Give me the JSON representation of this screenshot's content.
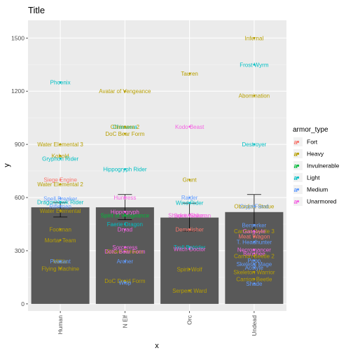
{
  "chart_data": {
    "type": "bar",
    "title": "Title",
    "xlabel": "x",
    "ylabel": "y",
    "ylim": [
      -40,
      1600
    ],
    "y_ticks": [
      0,
      300,
      600,
      900,
      1200,
      1500
    ],
    "categories": [
      "Human",
      "N Elf",
      "Orc",
      "Undead"
    ],
    "values": [
      545,
      545,
      487,
      518
    ],
    "error_bars": [
      {
        "category": "Human",
        "low": 490,
        "high": 572
      },
      {
        "category": "N Elf",
        "low": 475,
        "high": 617
      },
      {
        "category": "Orc",
        "low": 410,
        "high": 568
      },
      {
        "category": "Undead",
        "low": 415,
        "high": 617
      }
    ],
    "grid": true,
    "legend": {
      "title": "armor_type",
      "position": "right",
      "entries": [
        {
          "label": "Fort",
          "color": "#F8766D"
        },
        {
          "label": "Heavy",
          "color": "#B79F00"
        },
        {
          "label": "Invulnerable",
          "color": "#00BA38"
        },
        {
          "label": "Light",
          "color": "#00BFC4"
        },
        {
          "label": "Medium",
          "color": "#619CFF"
        },
        {
          "label": "Unarmored",
          "color": "#F564E3"
        }
      ]
    },
    "points": [
      {
        "label": "Phoenix",
        "x": "Human",
        "y": 1250,
        "armor": "Light"
      },
      {
        "label": "Water Elemental 3",
        "x": "Human",
        "y": 900,
        "armor": "Heavy"
      },
      {
        "label": "Kobold",
        "x": "Human",
        "y": 835,
        "armor": "Heavy"
      },
      {
        "label": "Gryphon Rider",
        "x": "Human",
        "y": 820,
        "armor": "Light"
      },
      {
        "label": "Siege Engine",
        "x": "Human",
        "y": 700,
        "armor": "Fort"
      },
      {
        "label": "Water Elemental 2",
        "x": "Human",
        "y": 675,
        "armor": "Heavy"
      },
      {
        "label": "Spell Breaker",
        "x": "Human",
        "y": 595,
        "armor": "Medium"
      },
      {
        "label": "Dragonhawk Rider",
        "x": "Human",
        "y": 575,
        "armor": "Light"
      },
      {
        "label": "Rifleman",
        "x": "Human",
        "y": 550,
        "armor": "Medium"
      },
      {
        "label": "Water Elemental",
        "x": "Human",
        "y": 525,
        "armor": "Heavy"
      },
      {
        "label": "Footman",
        "x": "Human",
        "y": 420,
        "armor": "Heavy"
      },
      {
        "label": "Mortar Team",
        "x": "Human",
        "y": 360,
        "armor": "Heavy"
      },
      {
        "label": "Militia",
        "x": "Human",
        "y": 240,
        "armor": "Heavy"
      },
      {
        "label": "Peasant",
        "x": "Human",
        "y": 240,
        "armor": "Medium"
      },
      {
        "label": "Flying Machine",
        "x": "Human",
        "y": 200,
        "armor": "Heavy"
      },
      {
        "label": "Avatar of Vengeance",
        "x": "N Elf",
        "y": 1200,
        "armor": "Heavy"
      },
      {
        "label": "Chimaera",
        "x": "N Elf",
        "y": 1000,
        "armor": "Light"
      },
      {
        "label": "Chimaera 2",
        "x": "N Elf",
        "y": 1000,
        "armor": "Heavy"
      },
      {
        "label": "DoC Bear Form",
        "x": "N Elf",
        "y": 960,
        "armor": "Heavy"
      },
      {
        "label": "Hippogryph Rider",
        "x": "N Elf",
        "y": 760,
        "armor": "Light"
      },
      {
        "label": "Huntress",
        "x": "N Elf",
        "y": 600,
        "armor": "Unarmored"
      },
      {
        "label": "Hippogryph",
        "x": "N Elf",
        "y": 520,
        "armor": "Unarmored"
      },
      {
        "label": "Spirit of Vengeance",
        "x": "N Elf",
        "y": 500,
        "armor": "Invulnerable"
      },
      {
        "label": "Faerie Dragon",
        "x": "N Elf",
        "y": 450,
        "armor": "Light"
      },
      {
        "label": "Dryad",
        "x": "N Elf",
        "y": 420,
        "armor": "Unarmored"
      },
      {
        "label": "Sorceress",
        "x": "N Elf",
        "y": 320,
        "armor": "Unarmored"
      },
      {
        "label": "Glaive Thrower",
        "x": "N Elf",
        "y": 295,
        "armor": "Heavy"
      },
      {
        "label": "DotC Bear Form",
        "x": "N Elf",
        "y": 295,
        "armor": "Unarmored"
      },
      {
        "label": "Archer",
        "x": "N Elf",
        "y": 240,
        "armor": "Medium"
      },
      {
        "label": "DoC Droid Form",
        "x": "N Elf",
        "y": 130,
        "armor": "Heavy"
      },
      {
        "label": "Wisp",
        "x": "N Elf",
        "y": 120,
        "armor": "Medium"
      },
      {
        "label": "Tauren",
        "x": "Orc",
        "y": 1300,
        "armor": "Heavy"
      },
      {
        "label": "Kodo Beast",
        "x": "Orc",
        "y": 1000,
        "armor": "Unarmored"
      },
      {
        "label": "Grunt",
        "x": "Orc",
        "y": 700,
        "armor": "Heavy"
      },
      {
        "label": "Raider",
        "x": "Orc",
        "y": 600,
        "armor": "Medium"
      },
      {
        "label": "Wind Rider",
        "x": "Orc",
        "y": 570,
        "armor": "Light"
      },
      {
        "label": "Shadow Shaman",
        "x": "Orc",
        "y": 500,
        "armor": "Unarmored"
      },
      {
        "label": "Spirit Walker",
        "x": "Orc",
        "y": 500,
        "armor": "Unarmored"
      },
      {
        "label": "Demolisher",
        "x": "Orc",
        "y": 420,
        "armor": "Fort"
      },
      {
        "label": "Troll Batrider",
        "x": "Orc",
        "y": 320,
        "armor": "Light"
      },
      {
        "label": "Witch Doctor",
        "x": "Orc",
        "y": 310,
        "armor": "Unarmored"
      },
      {
        "label": "Spirit Wolf",
        "x": "Orc",
        "y": 195,
        "armor": "Heavy"
      },
      {
        "label": "Serpent Ward",
        "x": "Orc",
        "y": 75,
        "armor": "Heavy"
      },
      {
        "label": "Infernal",
        "x": "Undead",
        "y": 1500,
        "armor": "Heavy"
      },
      {
        "label": "Frost Wyrm",
        "x": "Undead",
        "y": 1350,
        "armor": "Light"
      },
      {
        "label": "Abomination",
        "x": "Undead",
        "y": 1175,
        "armor": "Heavy"
      },
      {
        "label": "Destroyer",
        "x": "Undead",
        "y": 900,
        "armor": "Light"
      },
      {
        "label": "Obsidian Statue",
        "x": "Undead",
        "y": 550,
        "armor": "Heavy"
      },
      {
        "label": "Crypt Fiend",
        "x": "Undead",
        "y": 550,
        "armor": "Medium"
      },
      {
        "label": "Berserker",
        "x": "Undead",
        "y": 445,
        "armor": "Medium"
      },
      {
        "label": "Carrion Beetle 3",
        "x": "Undead",
        "y": 410,
        "armor": "Heavy"
      },
      {
        "label": "Gargoyle",
        "x": "Undead",
        "y": 410,
        "armor": "Unarmored"
      },
      {
        "label": "Meat Wagon",
        "x": "Undead",
        "y": 380,
        "armor": "Fort"
      },
      {
        "label": "T. Headhunter",
        "x": "Undead",
        "y": 350,
        "armor": "Medium"
      },
      {
        "label": "Necromancer",
        "x": "Undead",
        "y": 305,
        "armor": "Unarmored"
      },
      {
        "label": "Banshee",
        "x": "Undead",
        "y": 285,
        "armor": "Unarmored"
      },
      {
        "label": "Carrion Beetle 2",
        "x": "Undead",
        "y": 270,
        "armor": "Heavy"
      },
      {
        "label": "Peon",
        "x": "Undead",
        "y": 245,
        "armor": "Medium"
      },
      {
        "label": "Skeletal Mage",
        "x": "Undead",
        "y": 225,
        "armor": "Medium"
      },
      {
        "label": "Skeleton Warrior",
        "x": "Undead",
        "y": 180,
        "armor": "Heavy"
      },
      {
        "label": "Acolyte",
        "x": "Undead",
        "y": 205,
        "armor": "Medium"
      },
      {
        "label": "Carrion Beetle",
        "x": "Undead",
        "y": 140,
        "armor": "Heavy"
      },
      {
        "label": "Shade",
        "x": "Undead",
        "y": 115,
        "armor": "Medium"
      }
    ]
  }
}
